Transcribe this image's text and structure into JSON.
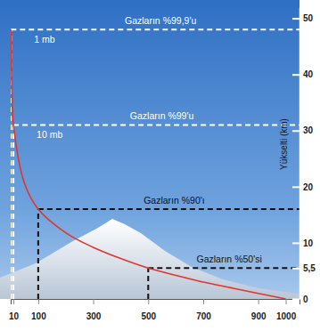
{
  "chart_data": {
    "type": "line",
    "y_label": "Yükselti (km)",
    "x": [
      1000,
      900,
      800,
      700,
      600,
      500,
      400,
      300,
      200,
      100,
      50,
      10,
      5,
      1
    ],
    "series": [
      {
        "color": "#e0362c",
        "values": [
          0,
          1,
          2,
          3,
          4.2,
          5.5,
          7.2,
          9.2,
          11.8,
          16,
          20.6,
          31,
          36,
          48
        ]
      }
    ],
    "xlim": [
      0,
      1050
    ],
    "xticks": [
      10,
      100,
      300,
      500,
      700,
      900,
      1000
    ],
    "ylim": [
      0,
      52
    ],
    "yticks": [
      0,
      {
        "value": 5.5,
        "label": "5,5"
      },
      10,
      20,
      30,
      40,
      50
    ],
    "grid": false,
    "levels": [
      {
        "label": "Gazların %99,9'u",
        "pressure_label": "1 mb",
        "x": 1,
        "y": 48,
        "color": "#ffffff"
      },
      {
        "label": "Gazların %99'u",
        "pressure_label": "10 mb",
        "x": 10,
        "y": 31,
        "color": "#ffffff"
      },
      {
        "label": "Gazların %90'ı",
        "x": 100,
        "y": 16,
        "color": "#111111"
      },
      {
        "label": "Gazların %50'si",
        "x": 500,
        "y": 5.5,
        "color": "#111111"
      }
    ]
  }
}
